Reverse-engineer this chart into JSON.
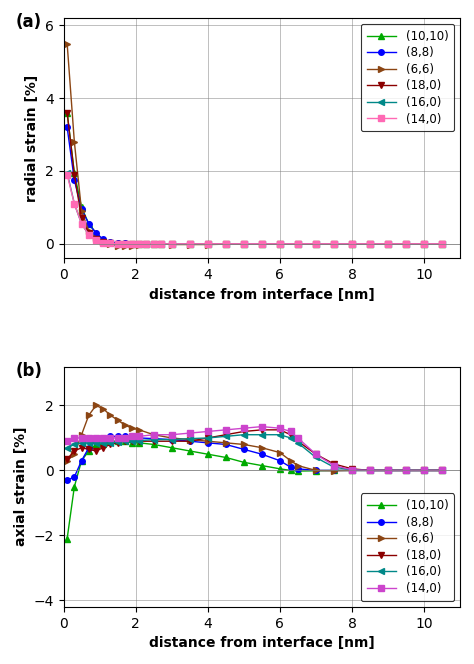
{
  "series_labels": [
    "(10,10)",
    "(8,8)",
    "(6,6)",
    "(18,0)",
    "(16,0)",
    "(14,0)"
  ],
  "colors_a": [
    "#00aa00",
    "#0000ff",
    "#8B4513",
    "#8B0000",
    "#008888",
    "#ff69b4"
  ],
  "colors_b": [
    "#00aa00",
    "#0000ff",
    "#8B4513",
    "#8B0000",
    "#008888",
    "#cc44cc"
  ],
  "markers_a": [
    "^",
    "o",
    ">",
    "v",
    "<",
    "s"
  ],
  "markers_b": [
    "^",
    "o",
    ">",
    "v",
    "<",
    "s"
  ],
  "panel_a_title": "(a)",
  "panel_b_title": "(b)",
  "xlabel": "distance from interface [nm]",
  "ylabel_a": "radial strain [%]",
  "ylabel_b": "axial strain [%]",
  "xlim": [
    0,
    11
  ],
  "ylim_a": [
    -0.4,
    6.2
  ],
  "ylim_b": [
    -4.2,
    3.2
  ],
  "xticks": [
    0,
    2,
    4,
    6,
    8,
    10
  ],
  "yticks_a": [
    0,
    2,
    4,
    6
  ],
  "yticks_b": [
    -4,
    -2,
    0,
    2
  ],
  "radial_x": [
    0.1,
    0.3,
    0.5,
    0.7,
    0.9,
    1.1,
    1.3,
    1.5,
    1.7,
    1.9,
    2.1,
    2.3,
    2.5,
    2.7,
    3.0,
    3.5,
    4.0,
    4.5,
    5.0,
    5.5,
    6.0,
    6.5,
    7.0,
    7.5,
    8.0,
    8.5,
    9.0,
    9.5,
    10.0,
    10.5
  ],
  "radial_1010": [
    3.6,
    1.95,
    1.0,
    0.55,
    0.3,
    0.1,
    0.05,
    0.02,
    0.01,
    0.0,
    0.0,
    0.0,
    0.0,
    0.0,
    0.0,
    0.0,
    0.0,
    0.0,
    0.0,
    0.0,
    0.0,
    0.0,
    0.0,
    0.0,
    0.0,
    0.0,
    0.0,
    0.0,
    0.0,
    0.0
  ],
  "radial_88": [
    3.2,
    1.75,
    0.95,
    0.55,
    0.3,
    0.12,
    0.05,
    0.02,
    0.01,
    0.0,
    0.0,
    0.0,
    0.0,
    0.0,
    0.0,
    0.0,
    0.0,
    0.0,
    0.0,
    0.0,
    0.0,
    0.0,
    0.0,
    0.0,
    0.0,
    0.0,
    0.0,
    0.0,
    0.0,
    0.0
  ],
  "radial_66": [
    5.5,
    2.8,
    0.9,
    0.35,
    0.15,
    0.05,
    0.0,
    -0.05,
    -0.07,
    -0.05,
    -0.03,
    -0.01,
    0.0,
    0.0,
    -0.02,
    -0.02,
    -0.02,
    -0.01,
    -0.01,
    -0.01,
    -0.01,
    -0.01,
    -0.01,
    0.0,
    0.0,
    0.0,
    0.0,
    0.0,
    0.0,
    0.0
  ],
  "radial_180": [
    3.6,
    1.9,
    0.7,
    0.3,
    0.12,
    0.04,
    0.01,
    0.0,
    0.0,
    0.0,
    0.0,
    0.0,
    0.0,
    0.0,
    0.0,
    0.0,
    0.0,
    0.0,
    0.0,
    0.0,
    0.0,
    0.0,
    0.0,
    0.0,
    0.0,
    0.0,
    0.0,
    0.0,
    0.0,
    0.0
  ],
  "radial_160": [
    1.95,
    1.1,
    0.55,
    0.25,
    0.1,
    0.03,
    0.01,
    0.0,
    0.0,
    0.0,
    0.0,
    0.0,
    0.0,
    0.0,
    0.0,
    0.0,
    0.0,
    0.0,
    0.0,
    0.0,
    0.0,
    0.0,
    0.0,
    0.0,
    0.0,
    0.0,
    0.0,
    0.0,
    0.0,
    0.0
  ],
  "radial_140": [
    1.9,
    1.1,
    0.55,
    0.25,
    0.1,
    0.03,
    0.01,
    0.0,
    0.0,
    0.0,
    0.0,
    0.0,
    0.0,
    0.0,
    0.0,
    0.0,
    0.0,
    0.0,
    0.0,
    0.0,
    0.0,
    0.0,
    0.0,
    0.0,
    0.0,
    0.0,
    0.0,
    0.0,
    0.0,
    0.0
  ],
  "axial_x": [
    0.1,
    0.3,
    0.5,
    0.7,
    0.9,
    1.1,
    1.3,
    1.5,
    1.7,
    1.9,
    2.1,
    2.5,
    3.0,
    3.5,
    4.0,
    4.5,
    5.0,
    5.5,
    6.0,
    6.3,
    6.5,
    7.0,
    7.5,
    8.0,
    8.5,
    9.0,
    9.5,
    10.0,
    10.5
  ],
  "axial_1010": [
    -2.1,
    -0.5,
    0.3,
    0.6,
    0.8,
    0.8,
    0.9,
    0.9,
    0.9,
    0.85,
    0.85,
    0.8,
    0.7,
    0.6,
    0.5,
    0.4,
    0.25,
    0.15,
    0.05,
    0.0,
    -0.02,
    -0.01,
    0.0,
    0.0,
    0.0,
    0.0,
    0.0,
    0.0,
    0.0
  ],
  "axial_88": [
    -0.3,
    -0.2,
    0.3,
    0.7,
    0.9,
    1.0,
    1.05,
    1.05,
    1.05,
    1.0,
    1.0,
    0.98,
    0.95,
    0.9,
    0.85,
    0.8,
    0.65,
    0.5,
    0.3,
    0.1,
    0.05,
    0.0,
    0.0,
    0.0,
    0.0,
    0.0,
    0.0,
    0.0,
    0.0
  ],
  "axial_66": [
    0.3,
    0.5,
    1.1,
    1.7,
    2.0,
    1.9,
    1.7,
    1.55,
    1.4,
    1.3,
    1.25,
    1.1,
    1.0,
    0.95,
    0.9,
    0.85,
    0.8,
    0.7,
    0.55,
    0.3,
    0.15,
    0.0,
    -0.01,
    0.0,
    0.0,
    0.0,
    0.0,
    0.0,
    0.0
  ],
  "axial_180": [
    0.35,
    0.6,
    0.7,
    0.65,
    0.6,
    0.7,
    0.8,
    0.85,
    0.9,
    0.9,
    0.9,
    0.9,
    0.9,
    0.9,
    1.0,
    1.1,
    1.2,
    1.25,
    1.25,
    1.1,
    0.9,
    0.5,
    0.2,
    0.05,
    0.0,
    0.0,
    0.0,
    0.0,
    0.0
  ],
  "axial_160": [
    0.7,
    0.8,
    0.85,
    0.85,
    0.85,
    0.85,
    0.85,
    0.88,
    0.9,
    0.9,
    0.92,
    0.95,
    0.95,
    0.98,
    1.0,
    1.05,
    1.1,
    1.1,
    1.1,
    1.0,
    0.85,
    0.4,
    0.1,
    0.02,
    0.0,
    0.0,
    0.0,
    0.0,
    0.0
  ],
  "axial_140": [
    0.9,
    1.0,
    1.0,
    1.0,
    1.0,
    1.0,
    1.0,
    1.0,
    1.0,
    1.05,
    1.05,
    1.1,
    1.1,
    1.15,
    1.2,
    1.25,
    1.3,
    1.35,
    1.3,
    1.2,
    1.0,
    0.5,
    0.15,
    0.02,
    0.0,
    0.0,
    0.0,
    0.0,
    0.0
  ]
}
